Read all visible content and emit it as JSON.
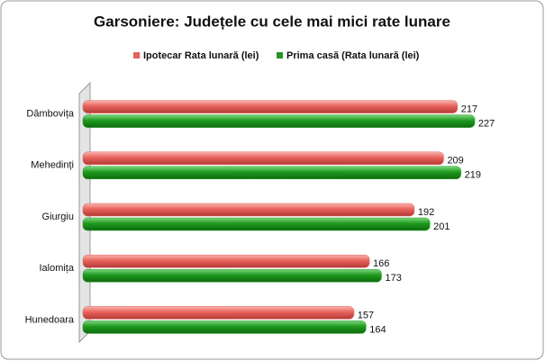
{
  "chart_data": {
    "type": "bar",
    "orientation": "horizontal",
    "title": "Garsoniere: Județele cu cele mai mici rate lunare",
    "categories": [
      "Dâmbovița",
      "Mehedinți",
      "Giurgiu",
      "Ialomița",
      "Hunedoara"
    ],
    "series": [
      {
        "name": "Ipotecar Rata lunară (lei)",
        "color": "#e8625c",
        "values": [
          217,
          209,
          192,
          166,
          157
        ]
      },
      {
        "name": "Prima casă (Rata lunară (lei)",
        "color": "#1e9a1e",
        "values": [
          227,
          219,
          201,
          173,
          164
        ]
      }
    ],
    "xlim": [
      0,
      250
    ],
    "legend": "top"
  }
}
